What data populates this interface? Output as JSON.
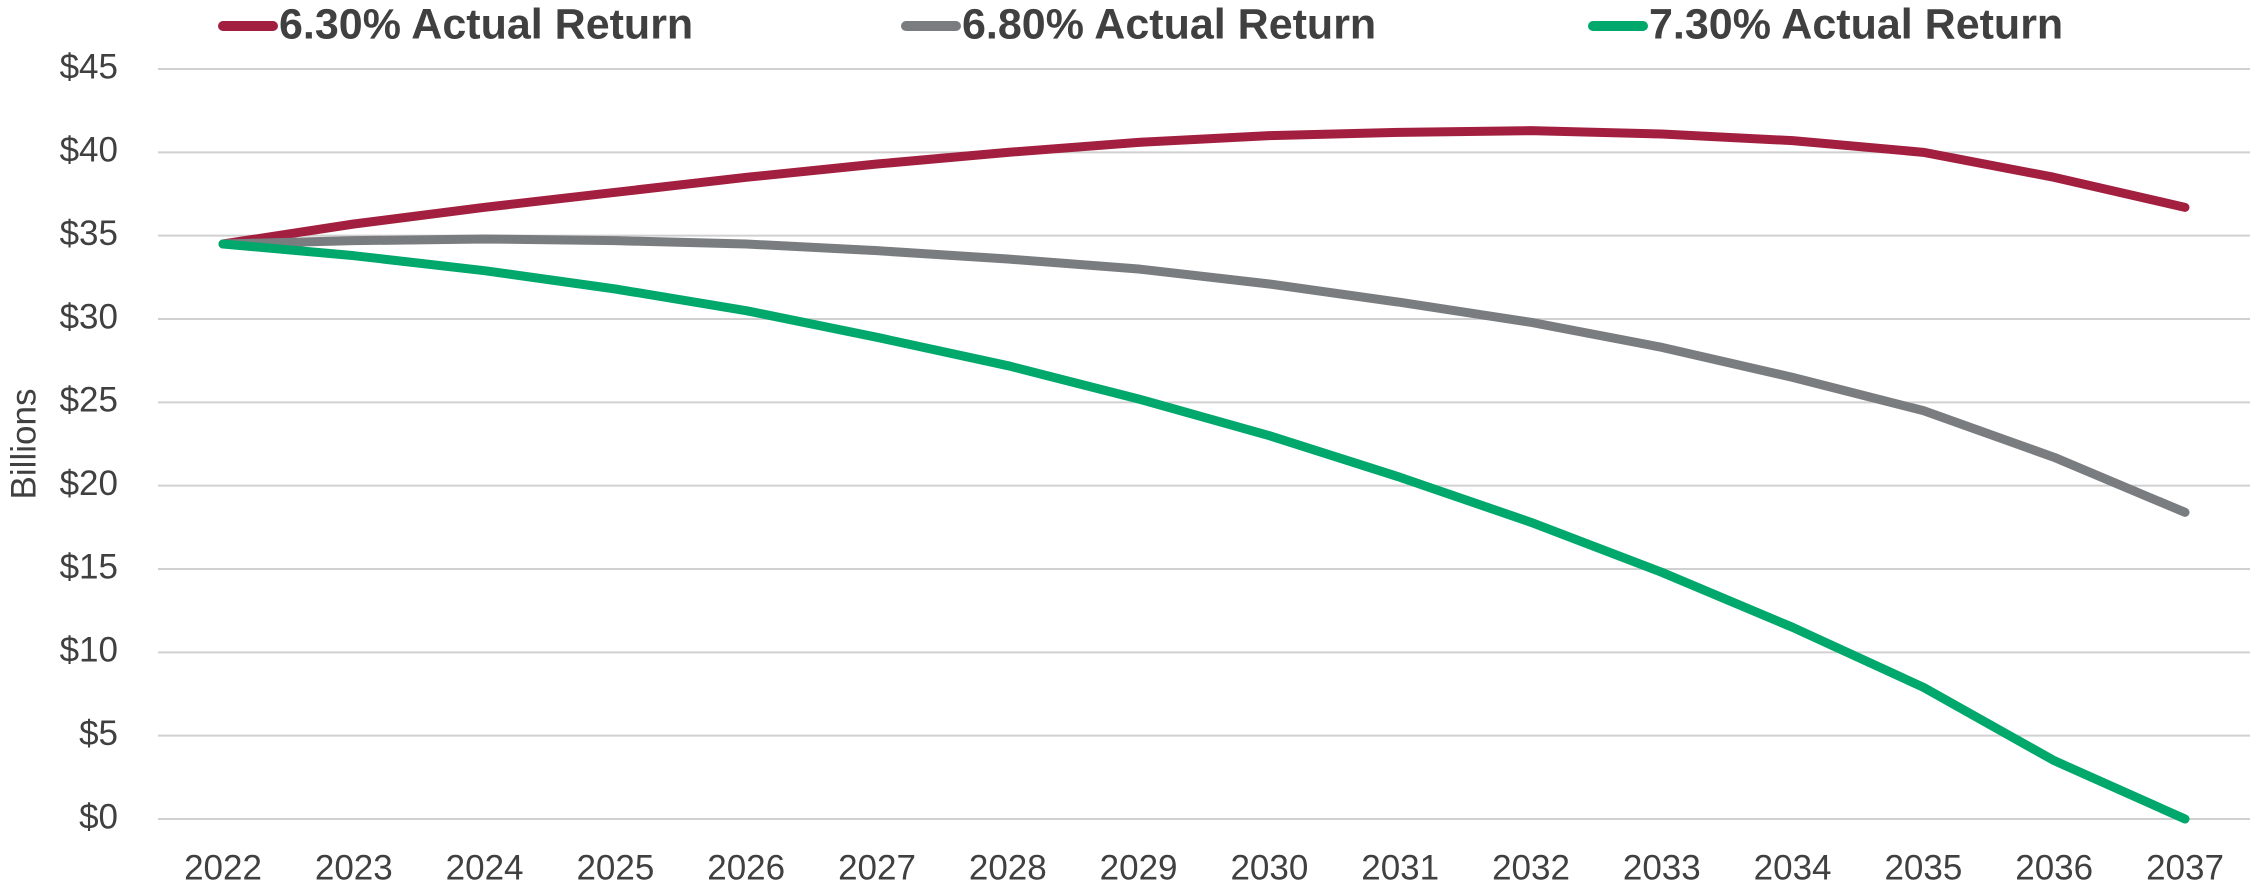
{
  "chart_data": {
    "type": "line",
    "y_label": "Billions",
    "categories": [
      "2022",
      "2023",
      "2024",
      "2025",
      "2026",
      "2027",
      "2028",
      "2029",
      "2030",
      "2031",
      "2032",
      "2033",
      "2034",
      "2035",
      "2036",
      "2037"
    ],
    "series": [
      {
        "name": "6.30% Actual Return",
        "color": "#a31f3f",
        "values": [
          34.5,
          35.7,
          36.7,
          37.6,
          38.5,
          39.3,
          40.0,
          40.6,
          41.0,
          41.2,
          41.3,
          41.1,
          40.7,
          40.0,
          38.5,
          36.7
        ]
      },
      {
        "name": "6.80% Actual Return",
        "color": "#7a7d80",
        "values": [
          34.5,
          34.7,
          34.8,
          34.7,
          34.5,
          34.1,
          33.6,
          33.0,
          32.1,
          31.0,
          29.8,
          28.3,
          26.5,
          24.5,
          21.7,
          18.4
        ]
      },
      {
        "name": "7.30% Actual Return",
        "color": "#00a86b",
        "values": [
          34.5,
          33.8,
          32.9,
          31.8,
          30.5,
          28.9,
          27.2,
          25.2,
          23.0,
          20.5,
          17.8,
          14.8,
          11.5,
          7.9,
          3.5,
          0.0
        ]
      }
    ],
    "ylim": [
      0,
      45
    ],
    "yticks": [
      {
        "value": 0,
        "label": "$0"
      },
      {
        "value": 5,
        "label": "$5"
      },
      {
        "value": 10,
        "label": "$10"
      },
      {
        "value": 15,
        "label": "$15"
      },
      {
        "value": 20,
        "label": "$20"
      },
      {
        "value": 25,
        "label": "$25"
      },
      {
        "value": 30,
        "label": "$30"
      },
      {
        "value": 35,
        "label": "$35"
      },
      {
        "value": 40,
        "label": "$40"
      },
      {
        "value": 45,
        "label": "$45"
      }
    ],
    "grid": true,
    "legend": "top"
  }
}
